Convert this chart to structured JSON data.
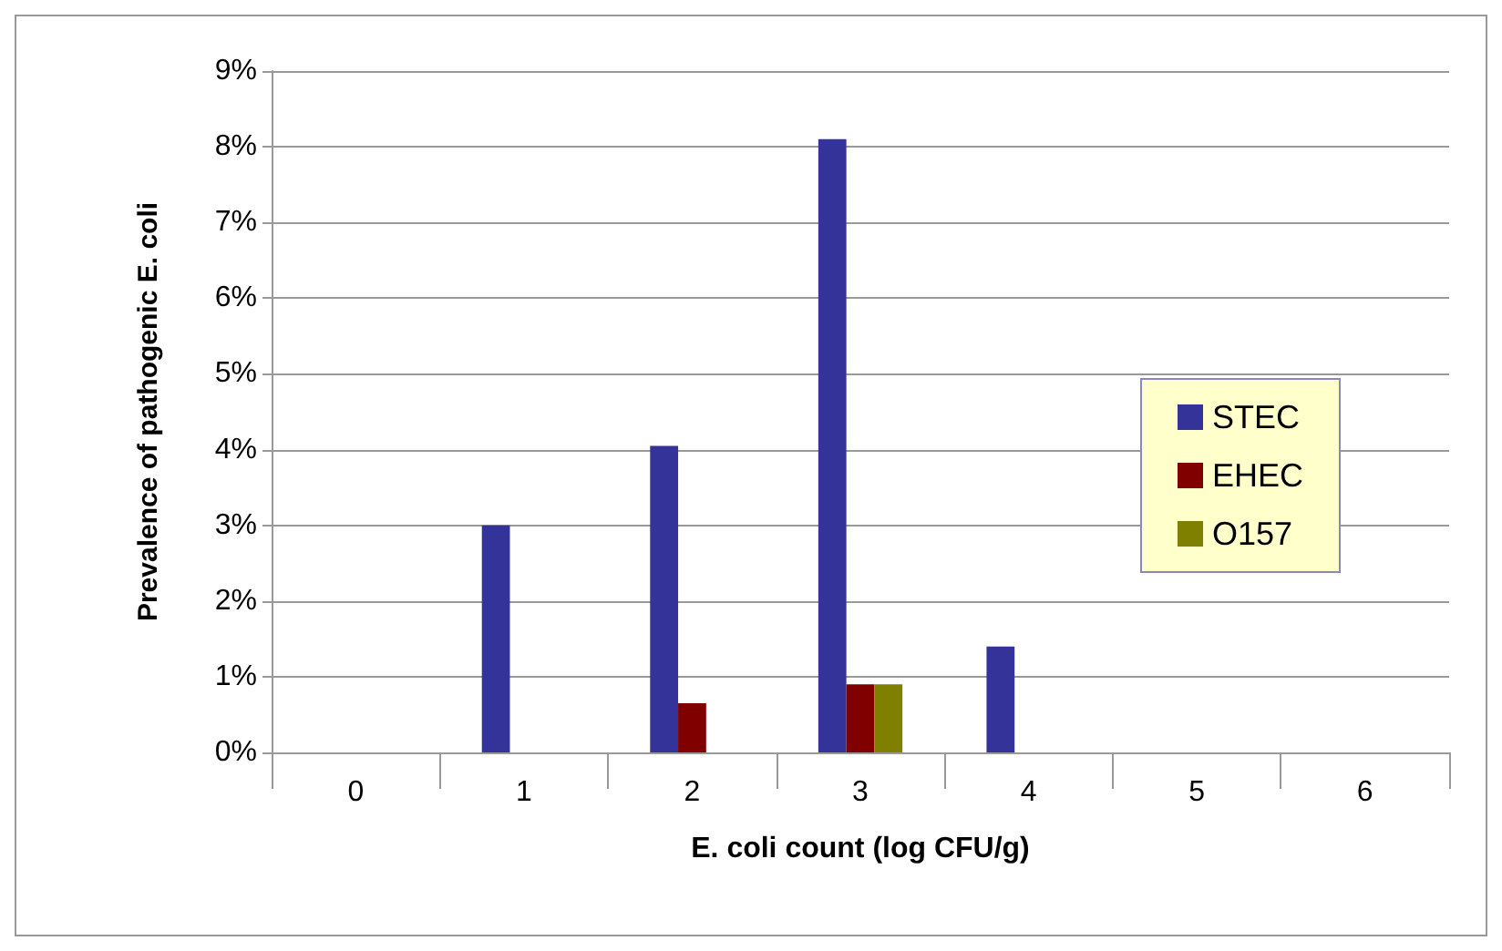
{
  "chart_data": {
    "type": "bar",
    "xlabel": "E. coli count (log CFU/g)",
    "ylabel": "Prevalence of pathogenic E. coli",
    "categories": [
      "0",
      "1",
      "2",
      "3",
      "4",
      "5",
      "6"
    ],
    "series": [
      {
        "name": "STEC",
        "color": "#333399",
        "values": [
          0,
          3.0,
          4.05,
          8.1,
          1.4,
          0,
          0
        ]
      },
      {
        "name": "EHEC",
        "color": "#800000",
        "values": [
          0,
          0,
          0.65,
          0.9,
          0,
          0,
          0
        ]
      },
      {
        "name": "O157",
        "color": "#808000",
        "values": [
          0,
          0,
          0,
          0.9,
          0,
          0,
          0
        ]
      }
    ],
    "ylim": [
      0,
      9
    ],
    "yticks": [
      {
        "value": 0,
        "label": "0%"
      },
      {
        "value": 1,
        "label": "1%"
      },
      {
        "value": 2,
        "label": "2%"
      },
      {
        "value": 3,
        "label": "3%"
      },
      {
        "value": 4,
        "label": "4%"
      },
      {
        "value": 5,
        "label": "5%"
      },
      {
        "value": 6,
        "label": "6%"
      },
      {
        "value": 7,
        "label": "7%"
      },
      {
        "value": 8,
        "label": "8%"
      },
      {
        "value": 9,
        "label": "9%"
      }
    ],
    "grid": "y",
    "legend": "right"
  }
}
